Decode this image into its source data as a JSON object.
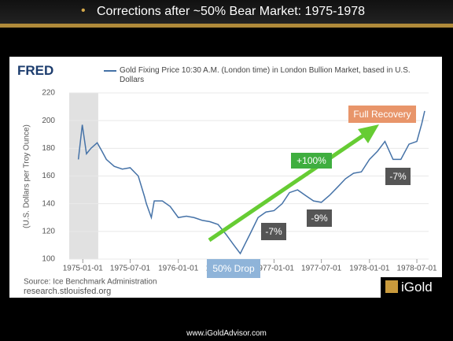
{
  "slide": {
    "title": "Corrections after ~50% Bear Market: 1975-1978",
    "footer": "www.iGoldAdvisor.com",
    "logo": "iGold"
  },
  "chart_data": {
    "type": "line",
    "brand": "FRED",
    "ylabel": "(U.S. Dollars per Troy Ounce)",
    "source": "Source: Ice Benchmark Administration",
    "site": "research.stlouisfed.org",
    "x": [
      "1974-12-15",
      "1974-12-30",
      "1975-01-15",
      "1975-02-01",
      "1975-02-25",
      "1975-03-15",
      "1975-04-01",
      "1975-05-01",
      "1975-06-01",
      "1975-07-01",
      "1975-08-01",
      "1975-08-25",
      "1975-09-01",
      "1975-09-20",
      "1975-10-01",
      "1975-11-01",
      "1975-12-01",
      "1976-01-01",
      "1976-02-01",
      "1976-03-01",
      "1976-04-01",
      "1976-05-01",
      "1976-06-01",
      "1976-07-01",
      "1976-08-01",
      "1976-08-25",
      "1976-09-15",
      "1976-10-01",
      "1976-11-01",
      "1976-12-01",
      "1977-01-01",
      "1977-02-01",
      "1977-03-01",
      "1977-04-01",
      "1977-05-01",
      "1977-06-01",
      "1977-07-01",
      "1977-08-01",
      "1977-09-01",
      "1977-10-01",
      "1977-11-01",
      "1977-12-01",
      "1978-01-01",
      "1978-02-01",
      "1978-03-01",
      "1978-04-01",
      "1978-05-01",
      "1978-06-01",
      "1978-07-01",
      "1978-07-20",
      "1978-07-31"
    ],
    "series": [
      {
        "name": "Gold Fixing Price 10:30 A.M. (London time) in London Bullion Market, based in U.S. Dollars",
        "color": "#4572a7",
        "values": [
          172,
          197,
          176,
          180,
          184,
          178,
          172,
          167,
          165,
          166,
          160,
          145,
          140,
          130,
          142,
          142,
          138,
          130,
          131,
          130,
          128,
          127,
          125,
          118,
          110,
          104,
          112,
          118,
          130,
          134,
          135,
          140,
          148,
          150,
          146,
          142,
          141,
          146,
          152,
          158,
          162,
          163,
          172,
          178,
          185,
          172,
          172,
          183,
          185,
          198,
          207
        ]
      }
    ],
    "xlim": [
      "1974-11-10",
      "1978-08-15"
    ],
    "xticks": [
      "1975-01-01",
      "1975-07-01",
      "1976-01-01",
      "1976-07-01",
      "1977-01-01",
      "1977-07-01",
      "1978-01-01",
      "1978-07-01"
    ],
    "ylim": [
      100,
      220
    ],
    "yticks": [
      100,
      120,
      140,
      160,
      180,
      200,
      220
    ],
    "grid": true,
    "shaded_period": [
      "1974-11-10",
      "1975-03-01"
    ],
    "annotations": [
      "Full Recovery",
      "+100%",
      "-7%",
      "-9%",
      "-7%",
      "50% Drop"
    ]
  }
}
